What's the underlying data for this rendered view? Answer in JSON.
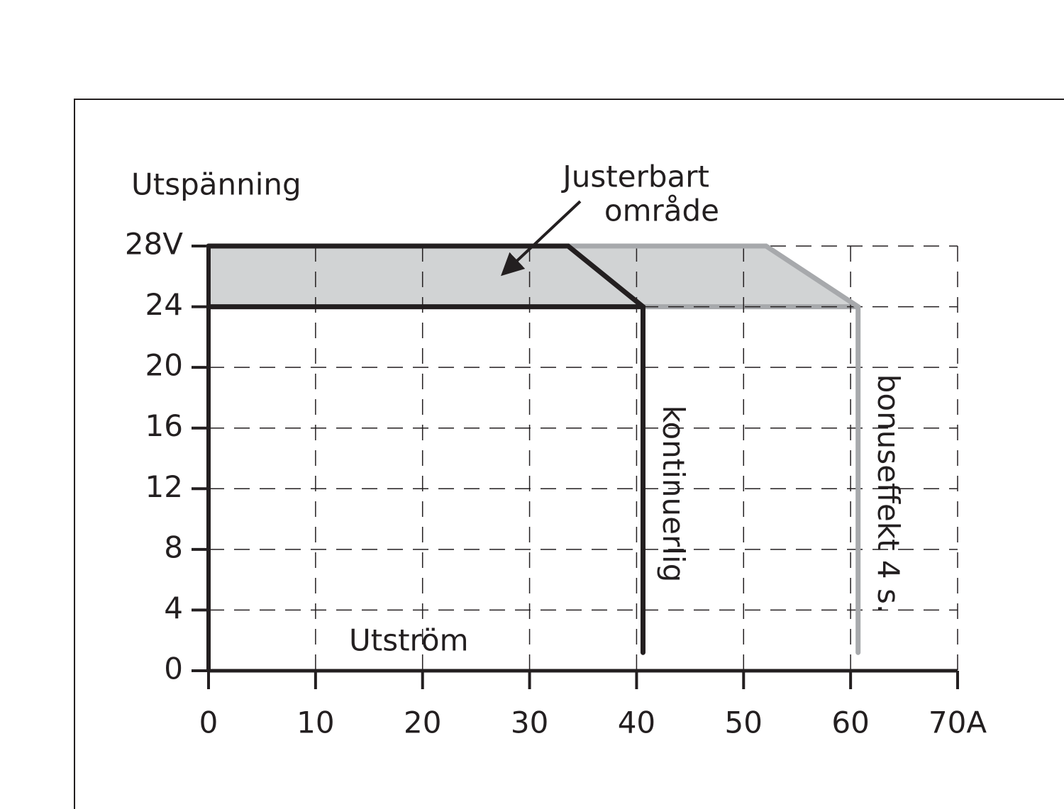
{
  "chart_data": {
    "type": "line",
    "x_label": "Utström",
    "y_label": "Utspänning",
    "xlim": [
      0,
      70
    ],
    "ylim": [
      0,
      28
    ],
    "xticks": [
      0,
      10,
      20,
      30,
      40,
      50,
      60,
      {
        "value": 70,
        "label": "70A"
      }
    ],
    "yticks": [
      0,
      4,
      8,
      12,
      16,
      20,
      24,
      {
        "value": 28,
        "label": "28V"
      }
    ],
    "grid": true,
    "region": {
      "x": [
        0,
        0,
        52.1,
        60.7
      ],
      "values": [
        24,
        28,
        28,
        24
      ],
      "color": "#d1d3d4",
      "edge_color": "#a7a9ac"
    },
    "series": [
      {
        "name": "bonuseffekt 4 s.",
        "color": "#a7a9ac",
        "x": [
          0,
          52.1,
          60.7,
          60.7
        ],
        "values": [
          28,
          28,
          24,
          1.2
        ]
      },
      {
        "name": "kontinuerlig",
        "color": "#231f20",
        "x": [
          0,
          33.6,
          40.6,
          40.6
        ],
        "values": [
          28,
          28,
          24,
          1.2
        ],
        "floor": {
          "x": [
            0,
            40.6
          ],
          "values": [
            24,
            24
          ]
        }
      }
    ],
    "annotation": {
      "lines": [
        "Justerbart",
        "område"
      ],
      "x": 27.3,
      "y": 26
    }
  }
}
